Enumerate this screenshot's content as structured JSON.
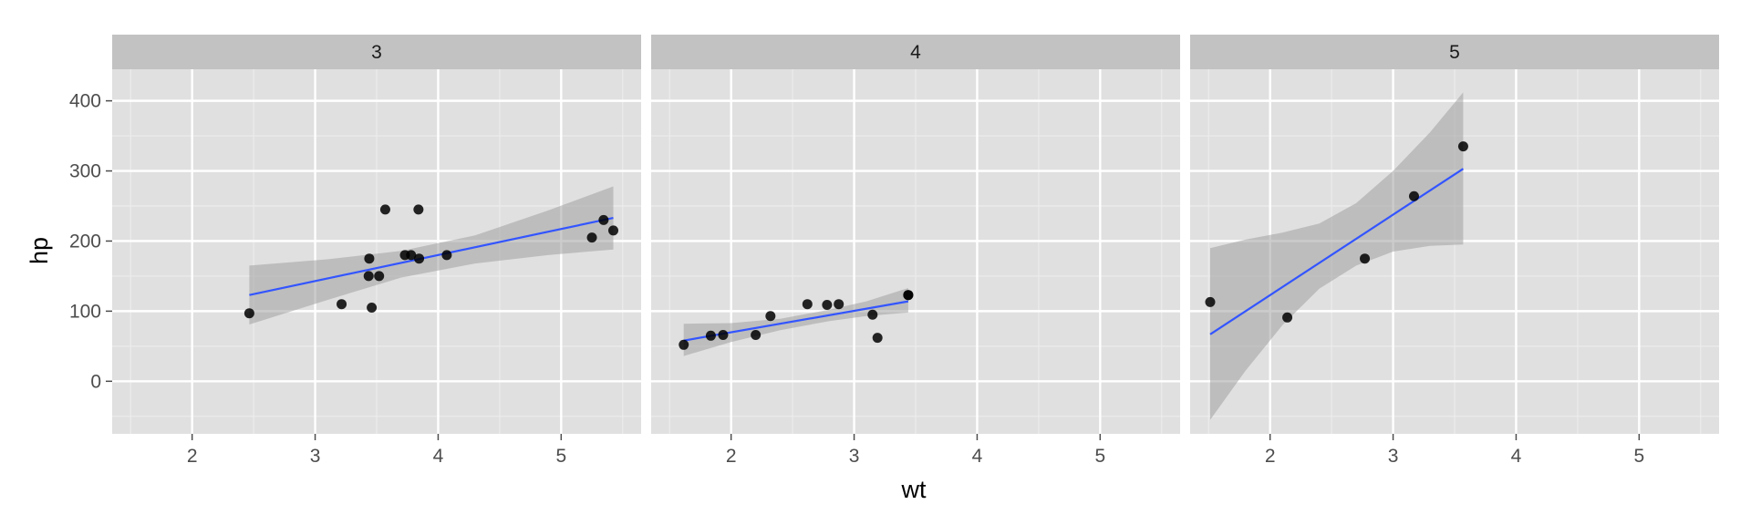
{
  "chart_data": {
    "type": "scatter",
    "xlabel": "wt",
    "ylabel": "hp",
    "xlim": [
      1.35,
      5.65
    ],
    "ylim": [
      -75,
      445
    ],
    "x_ticks": [
      2,
      3,
      4,
      5
    ],
    "y_ticks": [
      0,
      100,
      200,
      300,
      400
    ],
    "grid": true,
    "facets": [
      {
        "label": "3",
        "points": [
          {
            "x": 2.465,
            "y": 97
          },
          {
            "x": 3.215,
            "y": 110
          },
          {
            "x": 3.44,
            "y": 175
          },
          {
            "x": 3.46,
            "y": 105
          },
          {
            "x": 3.57,
            "y": 245
          },
          {
            "x": 4.07,
            "y": 180
          },
          {
            "x": 3.73,
            "y": 180
          },
          {
            "x": 3.78,
            "y": 180
          },
          {
            "x": 5.25,
            "y": 205
          },
          {
            "x": 5.424,
            "y": 215
          },
          {
            "x": 5.345,
            "y": 230
          },
          {
            "x": 3.52,
            "y": 150
          },
          {
            "x": 3.435,
            "y": 150
          },
          {
            "x": 3.84,
            "y": 245
          },
          {
            "x": 3.845,
            "y": 175
          }
        ],
        "fit": {
          "x": [
            2.465,
            5.424
          ],
          "y": [
            123,
            233
          ]
        },
        "band": {
          "x": [
            2.465,
            3.1,
            3.7,
            4.3,
            4.9,
            5.424
          ],
          "lower": [
            81,
            116,
            148,
            168,
            180,
            188
          ],
          "upper": [
            165,
            174,
            186,
            208,
            244,
            278
          ]
        }
      },
      {
        "label": "4",
        "points": [
          {
            "x": 2.62,
            "y": 110
          },
          {
            "x": 2.875,
            "y": 110
          },
          {
            "x": 2.32,
            "y": 93
          },
          {
            "x": 3.19,
            "y": 62
          },
          {
            "x": 3.15,
            "y": 95
          },
          {
            "x": 3.44,
            "y": 123
          },
          {
            "x": 3.44,
            "y": 123
          },
          {
            "x": 2.2,
            "y": 66
          },
          {
            "x": 1.615,
            "y": 52
          },
          {
            "x": 1.835,
            "y": 65
          },
          {
            "x": 1.935,
            "y": 66
          },
          {
            "x": 2.78,
            "y": 109
          }
        ],
        "fit": {
          "x": [
            1.615,
            3.44
          ],
          "y": [
            58,
            114
          ]
        },
        "band": {
          "x": [
            1.615,
            2.0,
            2.4,
            2.8,
            3.1,
            3.44
          ],
          "lower": [
            36,
            56,
            73,
            86,
            93,
            98
          ],
          "upper": [
            82,
            83,
            89,
            102,
            114,
            133
          ]
        }
      },
      {
        "label": "5",
        "points": [
          {
            "x": 2.14,
            "y": 91
          },
          {
            "x": 1.513,
            "y": 113
          },
          {
            "x": 3.17,
            "y": 264
          },
          {
            "x": 2.77,
            "y": 175
          },
          {
            "x": 3.57,
            "y": 335
          }
        ],
        "fit": {
          "x": [
            1.513,
            3.57
          ],
          "y": [
            67,
            303
          ]
        },
        "band": {
          "x": [
            1.513,
            1.8,
            2.1,
            2.4,
            2.7,
            3.0,
            3.3,
            3.57
          ],
          "lower": [
            -55,
            15,
            80,
            132,
            165,
            185,
            193,
            195
          ],
          "upper": [
            190,
            202,
            212,
            225,
            254,
            300,
            355,
            412
          ]
        }
      }
    ]
  },
  "colors": {
    "panel_background": "#e0e0e0",
    "strip_background": "#c2c2c2",
    "grid_major": "#ffffff",
    "grid_minor": "#ececec",
    "point": "#000000",
    "fit_line": "#3355ff",
    "band": "#999999"
  }
}
